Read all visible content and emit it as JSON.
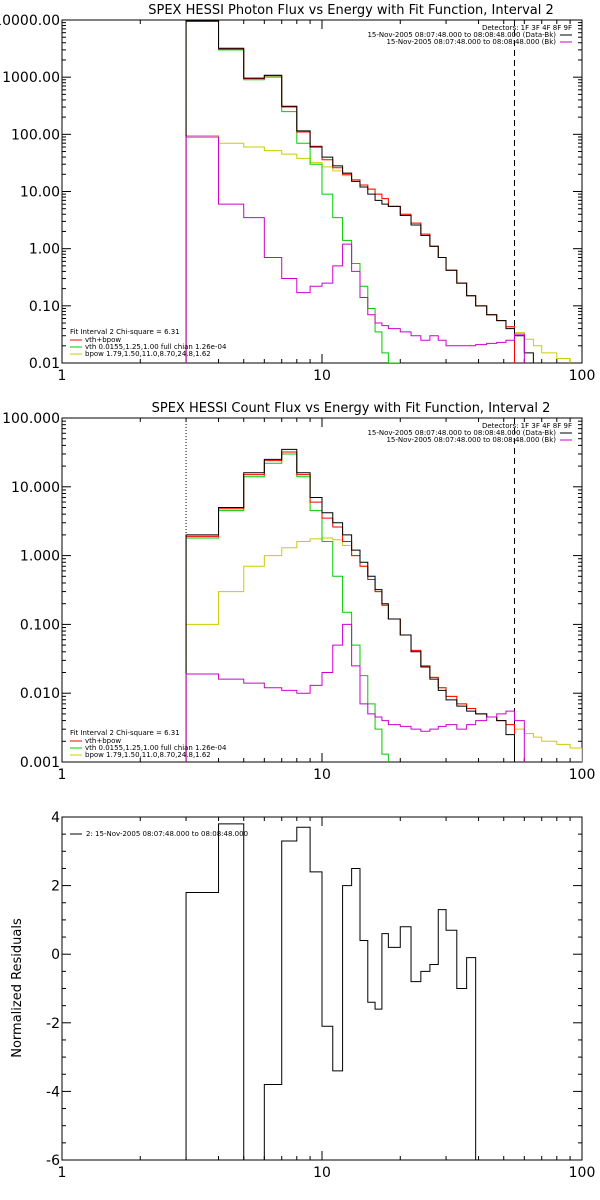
{
  "chart_data": [
    {
      "type": "line",
      "title": "SPEX HESSI Photon Flux vs Energy with Fit Function, Interval 2",
      "xscale": "log",
      "yscale": "log",
      "xlim": [
        1,
        100
      ],
      "ylim": [
        0.01,
        10000
      ],
      "xticks": [
        1,
        10,
        100
      ],
      "xtick_labels": [
        "1",
        "10",
        "100"
      ],
      "yticks": [
        0.01,
        0.1,
        1,
        10,
        100,
        1000,
        10000
      ],
      "ytick_labels": [
        "0.01",
        "0.10",
        "1.00",
        "10.00",
        "100.00",
        "1000.00",
        "10000.00"
      ],
      "vlines": [
        {
          "x": 3,
          "style": "dotted",
          "color": "#000000"
        },
        {
          "x": 55,
          "style": "dashed",
          "color": "#000000"
        }
      ],
      "header": {
        "detectors": "Detectors: 1F 3F 4F 8F 9F",
        "lines": [
          {
            "text": "15-Nov-2005 08:07:48.000 to 08:08:48.000 (Data-Bk)",
            "color": "#000000"
          },
          {
            "text": "15-Nov-2005 08:07:48.000 to 08:08:48.000 (Bk)",
            "color": "#cc00cc"
          }
        ]
      },
      "fit_legend": {
        "heading": "Fit Interval 2   Chi-square = 6.31",
        "items": [
          {
            "text": "vth+bpow",
            "color": "#ff0000"
          },
          {
            "text": "vth 0.0155,1.25,1.00  full chian 1.26e-04",
            "color": "#00cc00"
          },
          {
            "text": "bpow 1.79,1.50,11.0,8.70,24.8,1.62",
            "color": "#cccc00"
          }
        ]
      },
      "edges": [
        3,
        4,
        5,
        6,
        7,
        8,
        9,
        10,
        11,
        12,
        13,
        14,
        15,
        16,
        17,
        18,
        20,
        22,
        24,
        26,
        28,
        30,
        33,
        36,
        39,
        43,
        47,
        51,
        55,
        60,
        65,
        70,
        80,
        90
      ],
      "series": [
        {
          "color": "#cccc00",
          "values": [
            95,
            70,
            60,
            52,
            45,
            38,
            32,
            27,
            23,
            19,
            16,
            13,
            11,
            9,
            7.5,
            5.5,
            4,
            2.8,
            1.8,
            1.1,
            0.7,
            0.42,
            0.25,
            0.15,
            0.1,
            0.07,
            0.055,
            0.043,
            0.034,
            0.026,
            0.02,
            0.015,
            0.012
          ]
        },
        {
          "color": "#00cc00",
          "values": [
            9500,
            3000,
            900,
            1000,
            250,
            70,
            30,
            9,
            3.5,
            1.4,
            0.55,
            0.22,
            0.09,
            0.035,
            0.015,
            0.008
          ]
        },
        {
          "color": "#ff0000",
          "values": [
            9500,
            3100,
            950,
            1060,
            300,
            110,
            62,
            36,
            26,
            20,
            16,
            13,
            11,
            9,
            7.5,
            5.5,
            4,
            2.8,
            1.8,
            1.1,
            0.7,
            0.42,
            0.25,
            0.15,
            0.1,
            0.07,
            0.055,
            0.043
          ]
        },
        {
          "color": "#000000",
          "values": [
            9600,
            3200,
            960,
            1080,
            310,
            115,
            60,
            40,
            28,
            21,
            15,
            12,
            9,
            7,
            6,
            5.5,
            3.8,
            2.6,
            1.7,
            1.1,
            0.7,
            0.42,
            0.25,
            0.15,
            0.1,
            0.07,
            0.055,
            0.04,
            0.03,
            0.015
          ]
        },
        {
          "color": "#cc00cc",
          "values": [
            90,
            6,
            3.5,
            0.7,
            0.3,
            0.17,
            0.22,
            0.25,
            0.5,
            1.2,
            0.4,
            0.14,
            0.07,
            0.05,
            0.045,
            0.04,
            0.035,
            0.03,
            0.025,
            0.03,
            0.025,
            0.02,
            0.02,
            0.02,
            0.021,
            0.022,
            0.023,
            0.025,
            0.032
          ]
        }
      ]
    },
    {
      "type": "line",
      "title": "SPEX HESSI Count Flux vs Energy with Fit Function, Interval 2",
      "xscale": "log",
      "yscale": "log",
      "xlim": [
        1,
        100
      ],
      "ylim": [
        0.001,
        100
      ],
      "xticks": [
        1,
        10,
        100
      ],
      "xtick_labels": [
        "1",
        "10",
        "100"
      ],
      "yticks": [
        0.001,
        0.01,
        0.1,
        1,
        10,
        100
      ],
      "ytick_labels": [
        "0.001",
        "0.010",
        "0.100",
        "1.000",
        "10.000",
        "100.000"
      ],
      "vlines": [
        {
          "x": 3,
          "style": "dotted",
          "color": "#000000"
        },
        {
          "x": 55,
          "style": "dashed",
          "color": "#000000"
        }
      ],
      "header": {
        "detectors": "Detectors: 1F 3F 4F 8F 9F",
        "lines": [
          {
            "text": "15-Nov-2005 08:07:48.000 to 08:08:48.000 (Data-Bk)",
            "color": "#000000"
          },
          {
            "text": "15-Nov-2005 08:07:48.000 to 08:08:48.000 (Bk)",
            "color": "#cc00cc"
          }
        ]
      },
      "fit_legend": {
        "heading": "Fit Interval 2   Chi-square = 6.31",
        "items": [
          {
            "text": "vth+bpow",
            "color": "#ff0000"
          },
          {
            "text": "vth 0.0155,1.25,1.00  full chian 1.26e-04",
            "color": "#00cc00"
          },
          {
            "text": "bpow 1.79,1.50,11.0,8.70,24.8,1.62",
            "color": "#cccc00"
          }
        ]
      },
      "edges": [
        3,
        4,
        5,
        6,
        7,
        8,
        9,
        10,
        11,
        12,
        13,
        14,
        15,
        16,
        17,
        18,
        20,
        22,
        24,
        26,
        28,
        30,
        33,
        36,
        39,
        43,
        47,
        51,
        55,
        60,
        65,
        70,
        80,
        90,
        100
      ],
      "series": [
        {
          "color": "#cccc00",
          "values": [
            0.1,
            0.3,
            0.7,
            1.0,
            1.3,
            1.6,
            1.75,
            1.8,
            1.7,
            1.4,
            1.0,
            0.7,
            0.45,
            0.3,
            0.19,
            0.12,
            0.07,
            0.042,
            0.025,
            0.017,
            0.012,
            0.009,
            0.007,
            0.006,
            0.005,
            0.0045,
            0.004,
            0.0035,
            0.003,
            0.0026,
            0.0023,
            0.002,
            0.0018,
            0.0016
          ]
        },
        {
          "color": "#00cc00",
          "values": [
            1.8,
            4.5,
            14,
            22,
            30,
            14,
            4.5,
            1.6,
            0.5,
            0.15,
            0.05,
            0.018,
            0.007,
            0.003,
            0.0013
          ]
        },
        {
          "color": "#ff0000",
          "values": [
            1.9,
            4.8,
            15,
            24,
            32,
            15,
            6,
            3.5,
            2.6,
            1.6,
            1.0,
            0.7,
            0.45,
            0.3,
            0.19,
            0.12,
            0.07,
            0.042,
            0.025,
            0.017,
            0.012,
            0.009,
            0.007,
            0.006,
            0.005,
            0.0045,
            0.004,
            0.0035
          ]
        },
        {
          "color": "#000000",
          "values": [
            2.0,
            5.0,
            16,
            25,
            35,
            16,
            7,
            4.2,
            3,
            2,
            1.2,
            0.8,
            0.5,
            0.32,
            0.2,
            0.12,
            0.07,
            0.04,
            0.024,
            0.016,
            0.011,
            0.008,
            0.0065,
            0.0055,
            0.005,
            0.0045,
            0.004,
            0.0025
          ]
        },
        {
          "color": "#cc00cc",
          "values": [
            0.019,
            0.016,
            0.014,
            0.012,
            0.011,
            0.01,
            0.013,
            0.02,
            0.05,
            0.1,
            0.025,
            0.007,
            0.005,
            0.0045,
            0.004,
            0.0035,
            0.0033,
            0.003,
            0.0028,
            0.003,
            0.0033,
            0.0035,
            0.003,
            0.0035,
            0.004,
            0.0045,
            0.005,
            0.0055,
            0.004
          ]
        }
      ]
    },
    {
      "type": "line",
      "title": "",
      "ylabel": "Normalized Residuals",
      "xscale": "log",
      "yscale": "linear",
      "xlim": [
        1,
        100
      ],
      "ylim": [
        -6,
        4
      ],
      "xticks": [
        1,
        10,
        100
      ],
      "xtick_labels": [
        "1",
        "10",
        "100"
      ],
      "yticks": [
        -6,
        -4,
        -2,
        0,
        2,
        4
      ],
      "ytick_labels": [
        "-6",
        "-4",
        "-2",
        "0",
        "2",
        "4"
      ],
      "legend": "2: 15-Nov-2005 08:07:48.000 to 08:08:48.000",
      "edges": [
        3,
        4,
        5,
        6,
        7,
        8,
        9,
        10,
        11,
        12,
        13,
        14,
        15,
        16,
        17,
        18,
        20,
        22,
        24,
        26,
        28,
        30,
        33,
        36,
        39,
        43,
        47,
        51,
        55
      ],
      "series": [
        {
          "color": "#000000",
          "values": [
            1.8,
            3.8,
            -6,
            -3.8,
            3.3,
            3.7,
            2.4,
            -2.1,
            -3.4,
            2.0,
            2.5,
            0.4,
            -1.4,
            -1.6,
            0.6,
            0.2,
            0.8,
            -0.8,
            -0.5,
            -0.3,
            1.3,
            0.7,
            -1.0,
            -0.1
          ]
        }
      ]
    }
  ]
}
